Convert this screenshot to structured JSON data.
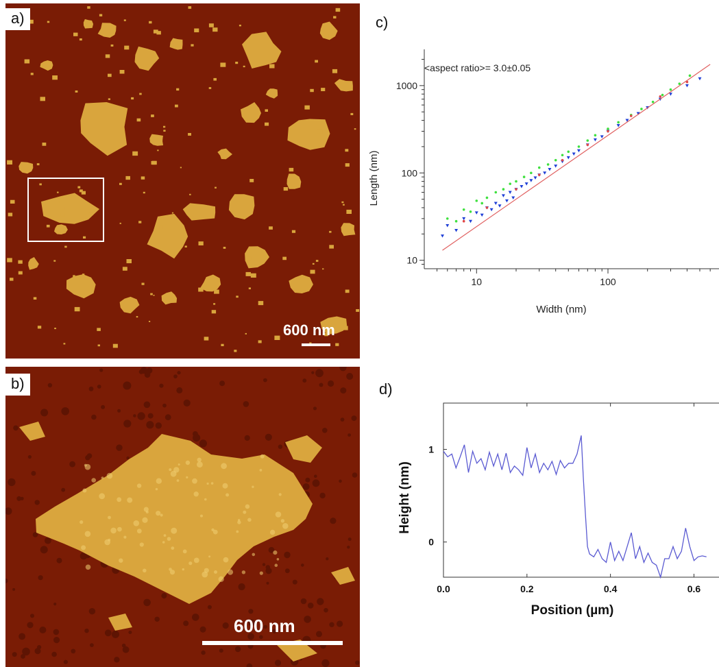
{
  "panels": {
    "a": {
      "label": "a)",
      "scale_bar_label": "600 nm"
    },
    "b": {
      "label": "b)",
      "scale_bar_label": "600 nm"
    },
    "c": {
      "label": "c)"
    },
    "d": {
      "label": "d)"
    }
  },
  "colors": {
    "afm_background": "#7a1c05",
    "afm_flake": "#d9a53d",
    "afm_flake_light": "#f0cf72",
    "scatter_blue": "#1f3fd6",
    "scatter_green": "#3fe03f",
    "scatter_red": "#e04848",
    "fit_line": "#e06060",
    "profile_line": "#5a5ad2"
  },
  "chart_data": [
    {
      "panel": "c",
      "type": "scatter",
      "annotation": "<aspect ratio>= 3.0±0.05",
      "xlabel": "Width (nm)",
      "ylabel": "Length (nm)",
      "x_scale": "log",
      "y_scale": "log",
      "xlim": [
        4,
        700
      ],
      "ylim": [
        8,
        2600
      ],
      "x_ticks": [
        10,
        100
      ],
      "y_ticks": [
        10,
        100,
        1000
      ],
      "grid": false,
      "series": [
        {
          "color": "#1f3fd6",
          "marker": "triangle-down",
          "x": [
            5.5,
            6,
            7,
            8,
            9,
            10,
            11,
            12,
            13,
            14,
            15,
            16,
            17,
            18,
            19,
            20,
            22,
            24,
            26,
            28,
            30,
            33,
            36,
            40,
            45,
            50,
            55,
            60,
            70,
            80,
            90,
            100,
            120,
            140,
            170,
            200,
            250,
            300,
            400,
            500
          ],
          "y": [
            19,
            25,
            22,
            30,
            28,
            35,
            33,
            40,
            38,
            45,
            42,
            55,
            48,
            60,
            52,
            65,
            70,
            75,
            82,
            88,
            95,
            100,
            110,
            120,
            135,
            150,
            165,
            180,
            210,
            240,
            260,
            300,
            350,
            400,
            480,
            560,
            700,
            800,
            1000,
            1200
          ]
        },
        {
          "color": "#3fe03f",
          "marker": "dot",
          "x": [
            6,
            7,
            8,
            9,
            10,
            11,
            12,
            14,
            16,
            18,
            20,
            23,
            26,
            30,
            35,
            40,
            45,
            50,
            60,
            70,
            80,
            100,
            120,
            150,
            180,
            220,
            260,
            300,
            350,
            420
          ],
          "y": [
            30,
            28,
            38,
            36,
            48,
            45,
            52,
            60,
            65,
            75,
            80,
            90,
            100,
            115,
            125,
            140,
            160,
            175,
            200,
            235,
            270,
            320,
            380,
            460,
            540,
            650,
            780,
            900,
            1050,
            1300
          ]
        },
        {
          "color": "#e04848",
          "marker": "dot",
          "x": [
            8,
            12,
            20,
            30,
            45,
            70,
            100,
            150,
            250,
            400
          ],
          "y": [
            28,
            40,
            65,
            95,
            140,
            210,
            300,
            450,
            750,
            1100
          ]
        }
      ],
      "fit_line": {
        "x": [
          5.5,
          600
        ],
        "y": [
          13,
          1750
        ]
      }
    },
    {
      "panel": "d",
      "type": "line",
      "xlabel": "Position (µm)",
      "ylabel": "Height (nm)",
      "xlim": [
        0.0,
        0.66
      ],
      "ylim": [
        -0.38,
        1.5
      ],
      "x_ticks": [
        0.0,
        0.2,
        0.4,
        0.6
      ],
      "x_tick_labels": [
        "0.0",
        "0.2",
        "0.4",
        "0.6"
      ],
      "y_ticks": [
        0,
        1
      ],
      "y_tick_labels": [
        "0",
        "1"
      ],
      "series": [
        {
          "x": [
            0.0,
            0.01,
            0.02,
            0.03,
            0.04,
            0.05,
            0.06,
            0.07,
            0.08,
            0.09,
            0.1,
            0.11,
            0.12,
            0.13,
            0.14,
            0.15,
            0.16,
            0.17,
            0.18,
            0.19,
            0.2,
            0.21,
            0.22,
            0.23,
            0.24,
            0.25,
            0.26,
            0.27,
            0.28,
            0.29,
            0.3,
            0.31,
            0.32,
            0.33,
            0.335,
            0.34,
            0.345,
            0.35,
            0.36,
            0.37,
            0.38,
            0.39,
            0.4,
            0.41,
            0.42,
            0.43,
            0.44,
            0.45,
            0.46,
            0.47,
            0.48,
            0.49,
            0.5,
            0.51,
            0.52,
            0.53,
            0.54,
            0.55,
            0.56,
            0.57,
            0.58,
            0.59,
            0.6,
            0.61,
            0.62,
            0.63
          ],
          "y": [
            0.98,
            0.92,
            0.95,
            0.8,
            0.92,
            1.05,
            0.75,
            0.98,
            0.85,
            0.9,
            0.78,
            0.97,
            0.82,
            0.95,
            0.78,
            0.96,
            0.75,
            0.82,
            0.78,
            0.72,
            1.02,
            0.8,
            0.95,
            0.75,
            0.85,
            0.78,
            0.87,
            0.73,
            0.88,
            0.8,
            0.85,
            0.85,
            0.95,
            1.15,
            0.7,
            0.3,
            -0.05,
            -0.13,
            -0.16,
            -0.08,
            -0.18,
            -0.22,
            0.0,
            -0.2,
            -0.1,
            -0.2,
            -0.05,
            0.1,
            -0.18,
            -0.05,
            -0.22,
            -0.12,
            -0.22,
            -0.25,
            -0.38,
            -0.18,
            -0.18,
            -0.05,
            -0.18,
            -0.1,
            0.15,
            -0.05,
            -0.2,
            -0.16,
            -0.15,
            -0.16
          ]
        }
      ]
    }
  ]
}
